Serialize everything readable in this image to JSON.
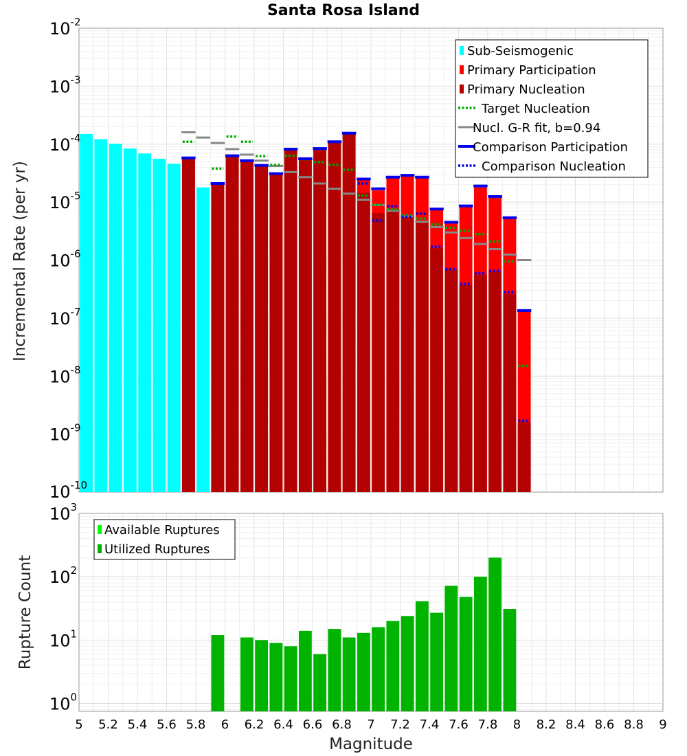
{
  "colors": {
    "sub_seismogenic": "#00ffff",
    "primary_participation": "#ff0000",
    "primary_nucleation": "#b30000",
    "target_nucleation": "#00aa00",
    "gr_fit": "#888888",
    "comparison": "#0000ee",
    "available": "#00ff00",
    "utilized": "#00b300"
  },
  "chart_data": [
    {
      "type": "bar",
      "title": "Santa Rosa Island",
      "xlabel": "Magnitude",
      "ylabel": "Incremental Rate (per yr)",
      "yscale": "log",
      "xlim": [
        5,
        9
      ],
      "ylim": [
        1e-10,
        0.01
      ],
      "y_tick_labels": [
        {
          "base": "10",
          "exp": "-10"
        },
        {
          "base": "10",
          "exp": "-9"
        },
        {
          "base": "10",
          "exp": "-8"
        },
        {
          "base": "10",
          "exp": "-7"
        },
        {
          "base": "10",
          "exp": "-6"
        },
        {
          "base": "10",
          "exp": "-5"
        },
        {
          "base": "10",
          "exp": "-4"
        },
        {
          "base": "10",
          "exp": "-3"
        },
        {
          "base": "10",
          "exp": "-2"
        }
      ],
      "legend": {
        "position": "top-right",
        "entries": [
          "Sub-Seismogenic",
          "Primary Participation",
          "Primary Nucleation",
          "Target Nucleation",
          "Nucl. G-R fit, b=0.94",
          "Comparison Participation",
          "Comparison Nucleation"
        ]
      },
      "sub_seismogenic": {
        "x": [
          5.05,
          5.15,
          5.25,
          5.35,
          5.45,
          5.55,
          5.65,
          5.85
        ],
        "values": [
          0.00015,
          0.000122,
          0.000102,
          8.4e-05,
          6.9e-05,
          5.6e-05,
          4.6e-05,
          1.8e-05
        ]
      },
      "primary_participation": {
        "x": [
          5.75,
          5.95,
          6.05,
          6.15,
          6.25,
          6.35,
          6.45,
          6.55,
          6.65,
          6.75,
          6.85,
          6.95,
          7.05,
          7.15,
          7.25,
          7.35,
          7.45,
          7.55,
          7.65,
          7.75,
          7.85,
          7.95,
          8.05
        ],
        "values": [
          5.6e-05,
          2e-05,
          6e-05,
          5e-05,
          4.1e-05,
          3e-05,
          7.8e-05,
          5.4e-05,
          8e-05,
          0.000105,
          0.00015,
          2.4e-05,
          1.6e-05,
          2.6e-05,
          2.8e-05,
          2.6e-05,
          7.3e-06,
          4.3e-06,
          8.3e-06,
          1.8e-05,
          1.2e-05,
          5.2e-06,
          1.3e-07
        ]
      },
      "primary_nucleation": {
        "x": [
          5.75,
          5.95,
          6.05,
          6.15,
          6.25,
          6.35,
          6.45,
          6.55,
          6.65,
          6.75,
          6.85,
          6.95,
          7.05,
          7.15,
          7.25,
          7.35,
          7.45,
          7.55,
          7.65,
          7.75,
          7.85,
          7.95,
          8.05
        ],
        "values": [
          5.6e-05,
          2e-05,
          6e-05,
          5e-05,
          4.1e-05,
          3e-05,
          7.8e-05,
          5.4e-05,
          8e-05,
          0.000105,
          0.00015,
          1.45e-05,
          6.5e-06,
          7.5e-06,
          5.5e-06,
          4.8e-06,
          1.6e-06,
          6.8e-07,
          3.7e-07,
          5.5e-07,
          6.3e-07,
          2.6e-07,
          1.6e-09
        ]
      },
      "target_nucleation": {
        "x": [
          5.75,
          5.95,
          6.05,
          6.15,
          6.25,
          6.35,
          6.45,
          6.55,
          6.65,
          6.75,
          6.85,
          6.95,
          7.05,
          7.15,
          7.25,
          7.35,
          7.45,
          7.55,
          7.65,
          7.75,
          7.85,
          7.95,
          8.05
        ],
        "values": [
          0.00011,
          3.8e-05,
          0.000135,
          0.00011,
          6.2e-05,
          4.4e-05,
          6.3e-05,
          5.5e-05,
          4.9e-05,
          4.4e-05,
          3.6e-05,
          1.3e-05,
          9e-06,
          7.5e-06,
          6e-06,
          5.2e-06,
          4.1e-06,
          3.6e-06,
          3.2e-06,
          2.8e-06,
          2.1e-06,
          9.5e-07,
          1.5e-08
        ]
      },
      "gr_fit": {
        "x": [
          5.75,
          5.85,
          5.95,
          6.05,
          6.15,
          6.25,
          6.35,
          6.45,
          6.55,
          6.65,
          6.75,
          6.85,
          6.95,
          7.05,
          7.15,
          7.25,
          7.35,
          7.45,
          7.55,
          7.65,
          7.75,
          7.85,
          7.95,
          8.05
        ],
        "values": [
          0.00016,
          0.00013,
          0.000105,
          8.2e-05,
          6.6e-05,
          5.2e-05,
          4.2e-05,
          3.3e-05,
          2.7e-05,
          2.1e-05,
          1.7e-05,
          1.4e-05,
          1.1e-05,
          8.9e-06,
          7.1e-06,
          5.7e-06,
          4.6e-06,
          3.7e-06,
          3e-06,
          2.4e-06,
          1.9e-06,
          1.55e-06,
          1.25e-06,
          1e-06
        ]
      },
      "comparison_participation": {
        "x": [
          5.75,
          5.95,
          6.05,
          6.15,
          6.25,
          6.35,
          6.45,
          6.55,
          6.65,
          6.75,
          6.85,
          6.95,
          7.05,
          7.15,
          7.25,
          7.35,
          7.45,
          7.55,
          7.65,
          7.75,
          7.85,
          7.95,
          8.05
        ],
        "values": [
          5.8e-05,
          2.1e-05,
          6.3e-05,
          5.2e-05,
          4.3e-05,
          3.1e-05,
          8.2e-05,
          5.6e-05,
          8.4e-05,
          0.00011,
          0.000155,
          2.5e-05,
          1.7e-05,
          2.7e-05,
          2.9e-05,
          2.7e-05,
          7.6e-06,
          4.5e-06,
          8.6e-06,
          1.9e-05,
          1.25e-05,
          5.4e-06,
          1.35e-07
        ]
      },
      "comparison_nucleation": {
        "x": [
          6.95,
          7.05,
          7.15,
          7.25,
          7.35,
          7.45,
          7.55,
          7.65,
          7.75,
          7.85,
          7.95,
          8.05
        ],
        "values": [
          2.1e-05,
          4.8e-06,
          8.5e-06,
          5.6e-06,
          6.3e-06,
          1.7e-06,
          7e-07,
          3.9e-07,
          5.9e-07,
          6.5e-07,
          2.8e-07,
          1.7e-09
        ]
      }
    },
    {
      "type": "bar",
      "title": "",
      "xlabel": "Magnitude",
      "ylabel": "Rupture Count",
      "yscale": "log",
      "xlim": [
        5,
        9
      ],
      "ylim": [
        0.75,
        1000
      ],
      "x_tick_labels": [
        "5",
        "5.2",
        "5.4",
        "5.6",
        "5.8",
        "6",
        "6.2",
        "6.4",
        "6.6",
        "6.8",
        "7",
        "7.2",
        "7.4",
        "7.6",
        "7.8",
        "8",
        "8.2",
        "8.4",
        "8.6",
        "8.8",
        "9"
      ],
      "y_tick_labels": [
        {
          "base": "10",
          "exp": "0"
        },
        {
          "base": "10",
          "exp": "1"
        },
        {
          "base": "10",
          "exp": "2"
        },
        {
          "base": "10",
          "exp": "3"
        }
      ],
      "legend": {
        "position": "top-left",
        "entries": [
          "Available Ruptures",
          "Utilized Ruptures"
        ]
      },
      "utilized_ruptures": {
        "x": [
          5.95,
          6.15,
          6.25,
          6.35,
          6.45,
          6.55,
          6.65,
          6.75,
          6.85,
          6.95,
          7.05,
          7.15,
          7.25,
          7.35,
          7.45,
          7.55,
          7.65,
          7.75,
          7.85,
          7.95
        ],
        "values": [
          12,
          11,
          10,
          9,
          8,
          14,
          6,
          15,
          11,
          13,
          16,
          20,
          24,
          41,
          27,
          72,
          48,
          100,
          200,
          31
        ]
      },
      "available_ruptures": {
        "x": [
          5.95,
          6.15,
          6.25,
          6.35,
          6.45,
          6.55,
          6.65,
          6.75,
          6.85,
          6.95,
          7.05,
          7.15,
          7.25,
          7.35,
          7.45,
          7.55,
          7.65,
          7.75,
          7.85,
          7.95
        ],
        "values": [
          12,
          11,
          10,
          9,
          8,
          14,
          6,
          15,
          11,
          13,
          16,
          20,
          24,
          41,
          27,
          72,
          48,
          100,
          200,
          31
        ]
      }
    }
  ]
}
